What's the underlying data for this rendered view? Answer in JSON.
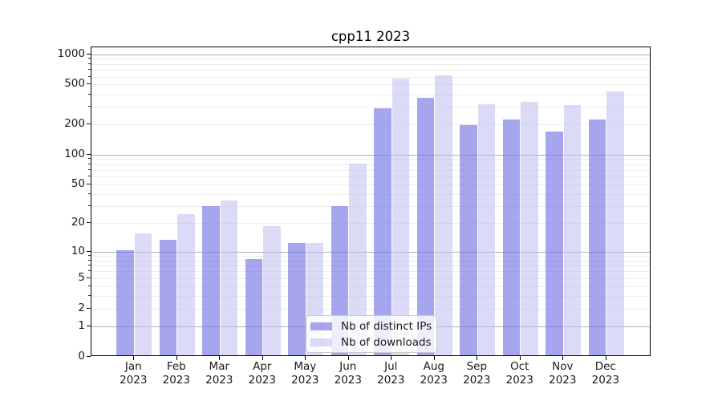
{
  "chart_data": {
    "type": "bar",
    "title": "cpp11 2023",
    "categories": [
      "Jan",
      "Feb",
      "Mar",
      "Apr",
      "May",
      "Jun",
      "Jul",
      "Aug",
      "Sep",
      "Oct",
      "Nov",
      "Dec"
    ],
    "year": "2023",
    "series": [
      {
        "name": "Nb of distinct IPs",
        "values": [
          10,
          13,
          29,
          8,
          12,
          29,
          280,
          353,
          190,
          218,
          163,
          218
        ],
        "fill": "rgba(120,120,230,0.66)",
        "color_hex": "#a6a6ef"
      },
      {
        "name": "Nb of downloads",
        "values": [
          15,
          24,
          33,
          18,
          12,
          78,
          550,
          595,
          305,
          325,
          303,
          410
        ],
        "fill": "rgba(190,190,243,0.55)",
        "color_hex": "#dbdbf9"
      }
    ],
    "yscale": "log1p",
    "yticks": [
      0,
      1,
      2,
      5,
      10,
      20,
      50,
      100,
      200,
      500,
      1000
    ],
    "ylim": [
      0,
      1150
    ],
    "xlabel": "",
    "ylabel": "",
    "grid": "horizontal",
    "legend_position": "lower center",
    "colors": {
      "grid_major": "#b0b0b0",
      "grid_minor": "#ededed",
      "axis": "#000000",
      "text": "#1a1a1a"
    }
  }
}
